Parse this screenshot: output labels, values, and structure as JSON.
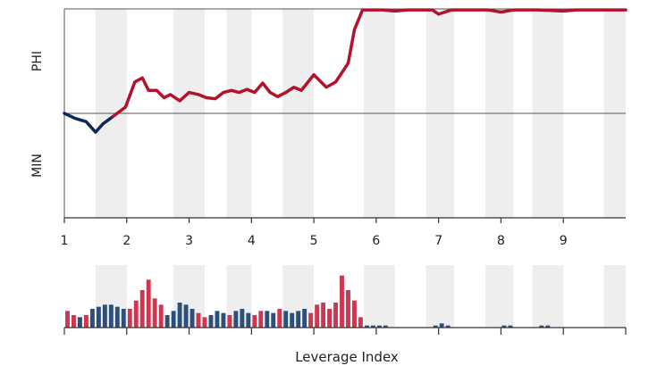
{
  "chart_data": {
    "type": "line",
    "title": "",
    "xlabel": "Leverage Index",
    "ylabel_top": "PHI",
    "ylabel_bottom": "MIN",
    "x_tick_labels": [
      "1",
      "2",
      "3",
      "4",
      "5",
      "6",
      "7",
      "8",
      "9"
    ],
    "x_tick_values": [
      1,
      2,
      3,
      4,
      5,
      6,
      7,
      8,
      9
    ],
    "xlim": [
      1,
      10
    ],
    "ylim": [
      -1,
      1
    ],
    "baseline": 0,
    "grid": false,
    "shaded_bands": [
      [
        1.5,
        2.0
      ],
      [
        2.75,
        3.25
      ],
      [
        3.6,
        4.0
      ],
      [
        4.5,
        5.0
      ],
      [
        5.8,
        6.3
      ],
      [
        6.8,
        7.25
      ],
      [
        7.75,
        8.2
      ],
      [
        8.5,
        9.0
      ],
      [
        9.65,
        10.0
      ]
    ],
    "series": [
      {
        "color": "#0b2a5b",
        "points": [
          [
            1.0,
            0.0
          ],
          [
            1.18,
            -0.05
          ],
          [
            1.35,
            -0.08
          ],
          [
            1.5,
            -0.18
          ],
          [
            1.62,
            -0.1
          ],
          [
            1.78,
            -0.03
          ]
        ]
      },
      {
        "color": "#b2122b",
        "points": [
          [
            1.78,
            -0.03
          ],
          [
            1.98,
            0.06
          ],
          [
            2.13,
            0.3
          ],
          [
            2.25,
            0.34
          ],
          [
            2.35,
            0.22
          ],
          [
            2.48,
            0.22
          ],
          [
            2.6,
            0.15
          ],
          [
            2.7,
            0.18
          ],
          [
            2.85,
            0.12
          ],
          [
            3.0,
            0.2
          ],
          [
            3.15,
            0.18
          ],
          [
            3.28,
            0.15
          ],
          [
            3.42,
            0.14
          ],
          [
            3.55,
            0.2
          ],
          [
            3.68,
            0.22
          ],
          [
            3.8,
            0.2
          ],
          [
            3.93,
            0.23
          ],
          [
            4.05,
            0.2
          ],
          [
            4.18,
            0.29
          ],
          [
            4.3,
            0.2
          ],
          [
            4.42,
            0.16
          ],
          [
            4.55,
            0.2
          ],
          [
            4.68,
            0.25
          ],
          [
            4.8,
            0.22
          ],
          [
            5.0,
            0.37
          ],
          [
            5.2,
            0.25
          ],
          [
            5.35,
            0.3
          ],
          [
            5.55,
            0.48
          ],
          [
            5.65,
            0.8
          ],
          [
            5.78,
            0.99
          ],
          [
            6.1,
            0.99
          ],
          [
            6.3,
            0.98
          ],
          [
            6.5,
            0.99
          ],
          [
            6.9,
            0.99
          ],
          [
            7.0,
            0.95
          ],
          [
            7.2,
            0.99
          ],
          [
            7.5,
            0.99
          ],
          [
            7.8,
            0.99
          ],
          [
            8.0,
            0.97
          ],
          [
            8.2,
            0.99
          ],
          [
            8.6,
            0.99
          ],
          [
            9.0,
            0.98
          ],
          [
            9.2,
            0.99
          ],
          [
            10.0,
            0.99
          ]
        ]
      }
    ],
    "histogram": {
      "ylim": [
        0,
        30
      ],
      "colors": {
        "positive": "#d03650",
        "negative": "#2d4f7c"
      },
      "bars": [
        {
          "x": 1.05,
          "value": 8,
          "sign": "positive"
        },
        {
          "x": 1.15,
          "value": 6,
          "sign": "positive"
        },
        {
          "x": 1.25,
          "value": 5,
          "sign": "negative"
        },
        {
          "x": 1.35,
          "value": 6,
          "sign": "positive"
        },
        {
          "x": 1.45,
          "value": 9,
          "sign": "negative"
        },
        {
          "x": 1.55,
          "value": 10,
          "sign": "negative"
        },
        {
          "x": 1.65,
          "value": 11,
          "sign": "negative"
        },
        {
          "x": 1.75,
          "value": 11,
          "sign": "negative"
        },
        {
          "x": 1.85,
          "value": 10,
          "sign": "negative"
        },
        {
          "x": 1.95,
          "value": 9,
          "sign": "negative"
        },
        {
          "x": 2.05,
          "value": 9,
          "sign": "positive"
        },
        {
          "x": 2.15,
          "value": 13,
          "sign": "positive"
        },
        {
          "x": 2.25,
          "value": 18,
          "sign": "positive"
        },
        {
          "x": 2.35,
          "value": 23,
          "sign": "positive"
        },
        {
          "x": 2.45,
          "value": 14,
          "sign": "positive"
        },
        {
          "x": 2.55,
          "value": 11,
          "sign": "positive"
        },
        {
          "x": 2.65,
          "value": 6,
          "sign": "negative"
        },
        {
          "x": 2.75,
          "value": 8,
          "sign": "negative"
        },
        {
          "x": 2.85,
          "value": 12,
          "sign": "negative"
        },
        {
          "x": 2.95,
          "value": 11,
          "sign": "negative"
        },
        {
          "x": 3.05,
          "value": 9,
          "sign": "negative"
        },
        {
          "x": 3.15,
          "value": 7,
          "sign": "positive"
        },
        {
          "x": 3.25,
          "value": 5,
          "sign": "positive"
        },
        {
          "x": 3.35,
          "value": 6,
          "sign": "negative"
        },
        {
          "x": 3.45,
          "value": 8,
          "sign": "negative"
        },
        {
          "x": 3.55,
          "value": 7,
          "sign": "negative"
        },
        {
          "x": 3.65,
          "value": 6,
          "sign": "positive"
        },
        {
          "x": 3.75,
          "value": 8,
          "sign": "negative"
        },
        {
          "x": 3.85,
          "value": 9,
          "sign": "negative"
        },
        {
          "x": 3.95,
          "value": 7,
          "sign": "negative"
        },
        {
          "x": 4.05,
          "value": 6,
          "sign": "positive"
        },
        {
          "x": 4.15,
          "value": 8,
          "sign": "positive"
        },
        {
          "x": 4.25,
          "value": 8,
          "sign": "negative"
        },
        {
          "x": 4.35,
          "value": 7,
          "sign": "negative"
        },
        {
          "x": 4.45,
          "value": 9,
          "sign": "positive"
        },
        {
          "x": 4.55,
          "value": 8,
          "sign": "negative"
        },
        {
          "x": 4.65,
          "value": 7,
          "sign": "negative"
        },
        {
          "x": 4.75,
          "value": 8,
          "sign": "negative"
        },
        {
          "x": 4.85,
          "value": 9,
          "sign": "negative"
        },
        {
          "x": 4.95,
          "value": 7,
          "sign": "positive"
        },
        {
          "x": 5.05,
          "value": 11,
          "sign": "positive"
        },
        {
          "x": 5.15,
          "value": 12,
          "sign": "positive"
        },
        {
          "x": 5.25,
          "value": 9,
          "sign": "positive"
        },
        {
          "x": 5.35,
          "value": 12,
          "sign": "positive"
        },
        {
          "x": 5.45,
          "value": 25,
          "sign": "positive"
        },
        {
          "x": 5.55,
          "value": 18,
          "sign": "positive"
        },
        {
          "x": 5.65,
          "value": 13,
          "sign": "positive"
        },
        {
          "x": 5.75,
          "value": 5,
          "sign": "positive"
        },
        {
          "x": 5.85,
          "value": 1,
          "sign": "negative"
        },
        {
          "x": 5.95,
          "value": 1,
          "sign": "negative"
        },
        {
          "x": 6.05,
          "value": 1,
          "sign": "negative"
        },
        {
          "x": 6.15,
          "value": 1,
          "sign": "negative"
        },
        {
          "x": 6.95,
          "value": 1,
          "sign": "negative"
        },
        {
          "x": 7.05,
          "value": 2,
          "sign": "negative"
        },
        {
          "x": 7.15,
          "value": 1,
          "sign": "negative"
        },
        {
          "x": 8.05,
          "value": 1,
          "sign": "negative"
        },
        {
          "x": 8.15,
          "value": 1,
          "sign": "negative"
        },
        {
          "x": 8.65,
          "value": 1,
          "sign": "negative"
        },
        {
          "x": 8.75,
          "value": 1,
          "sign": "negative"
        }
      ]
    }
  }
}
